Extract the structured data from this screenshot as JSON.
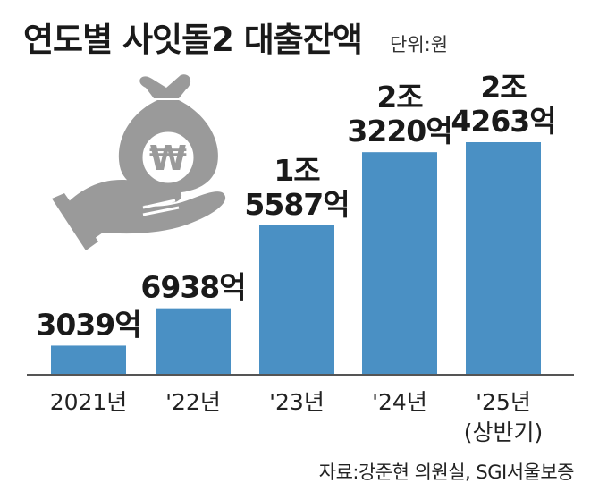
{
  "header": {
    "title": "연도별 사잇돌2 대출잔액",
    "unit": "단위:원"
  },
  "footer": {
    "source": "자료:강준현 의원실, SGI서울보증"
  },
  "illustration": {
    "icon": "money-bag-hand-icon",
    "symbol": "₩",
    "color": "#9a9a9a"
  },
  "chart_data": {
    "type": "bar",
    "categories": [
      "2021년",
      "'22년",
      "'23년",
      "'24년",
      "'25년"
    ],
    "category_notes": [
      "",
      "",
      "",
      "",
      "(상반기)"
    ],
    "values": [
      3039,
      6938,
      15587,
      23220,
      24263
    ],
    "value_unit": "억원",
    "data_labels": [
      [
        "3039억"
      ],
      [
        "6938억"
      ],
      [
        "1조",
        "5587억"
      ],
      [
        "2조",
        "3220억"
      ],
      [
        "2조",
        "4263억"
      ]
    ],
    "title": "연도별 사잇돌2 대출잔액",
    "bar_color": "#4a90c4",
    "axis_color": "#555555",
    "grid": false,
    "legend": "none"
  }
}
